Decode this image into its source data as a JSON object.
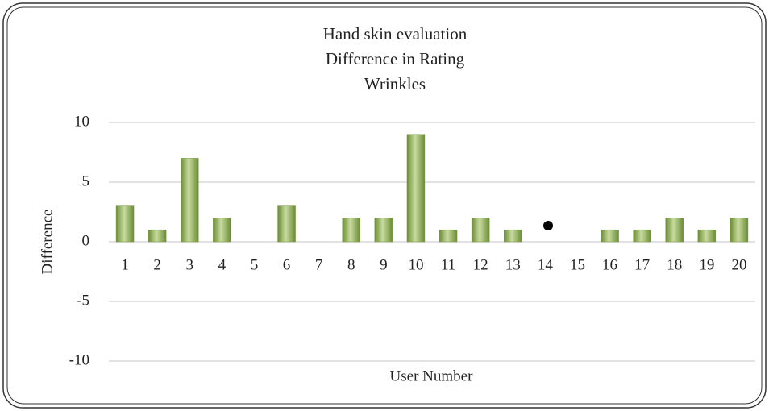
{
  "chart_data": {
    "type": "bar",
    "title": [
      "Hand skin evaluation",
      "Difference in Rating",
      "Wrinkles"
    ],
    "x_label": "User Number",
    "y_label": "Difference",
    "categories": [
      "1",
      "2",
      "3",
      "4",
      "5",
      "6",
      "7",
      "8",
      "9",
      "10",
      "11",
      "12",
      "13",
      "14",
      "15",
      "16",
      "17",
      "18",
      "19",
      "20"
    ],
    "values": [
      3,
      1,
      7,
      2,
      0,
      3,
      0,
      2,
      2,
      9,
      1,
      2,
      1,
      0,
      0,
      1,
      1,
      2,
      1,
      2
    ],
    "color": "#7a9a45",
    "ylim": [
      -10,
      10
    ],
    "yticks": [
      -10,
      -5,
      0,
      5,
      10
    ],
    "grid": true
  }
}
